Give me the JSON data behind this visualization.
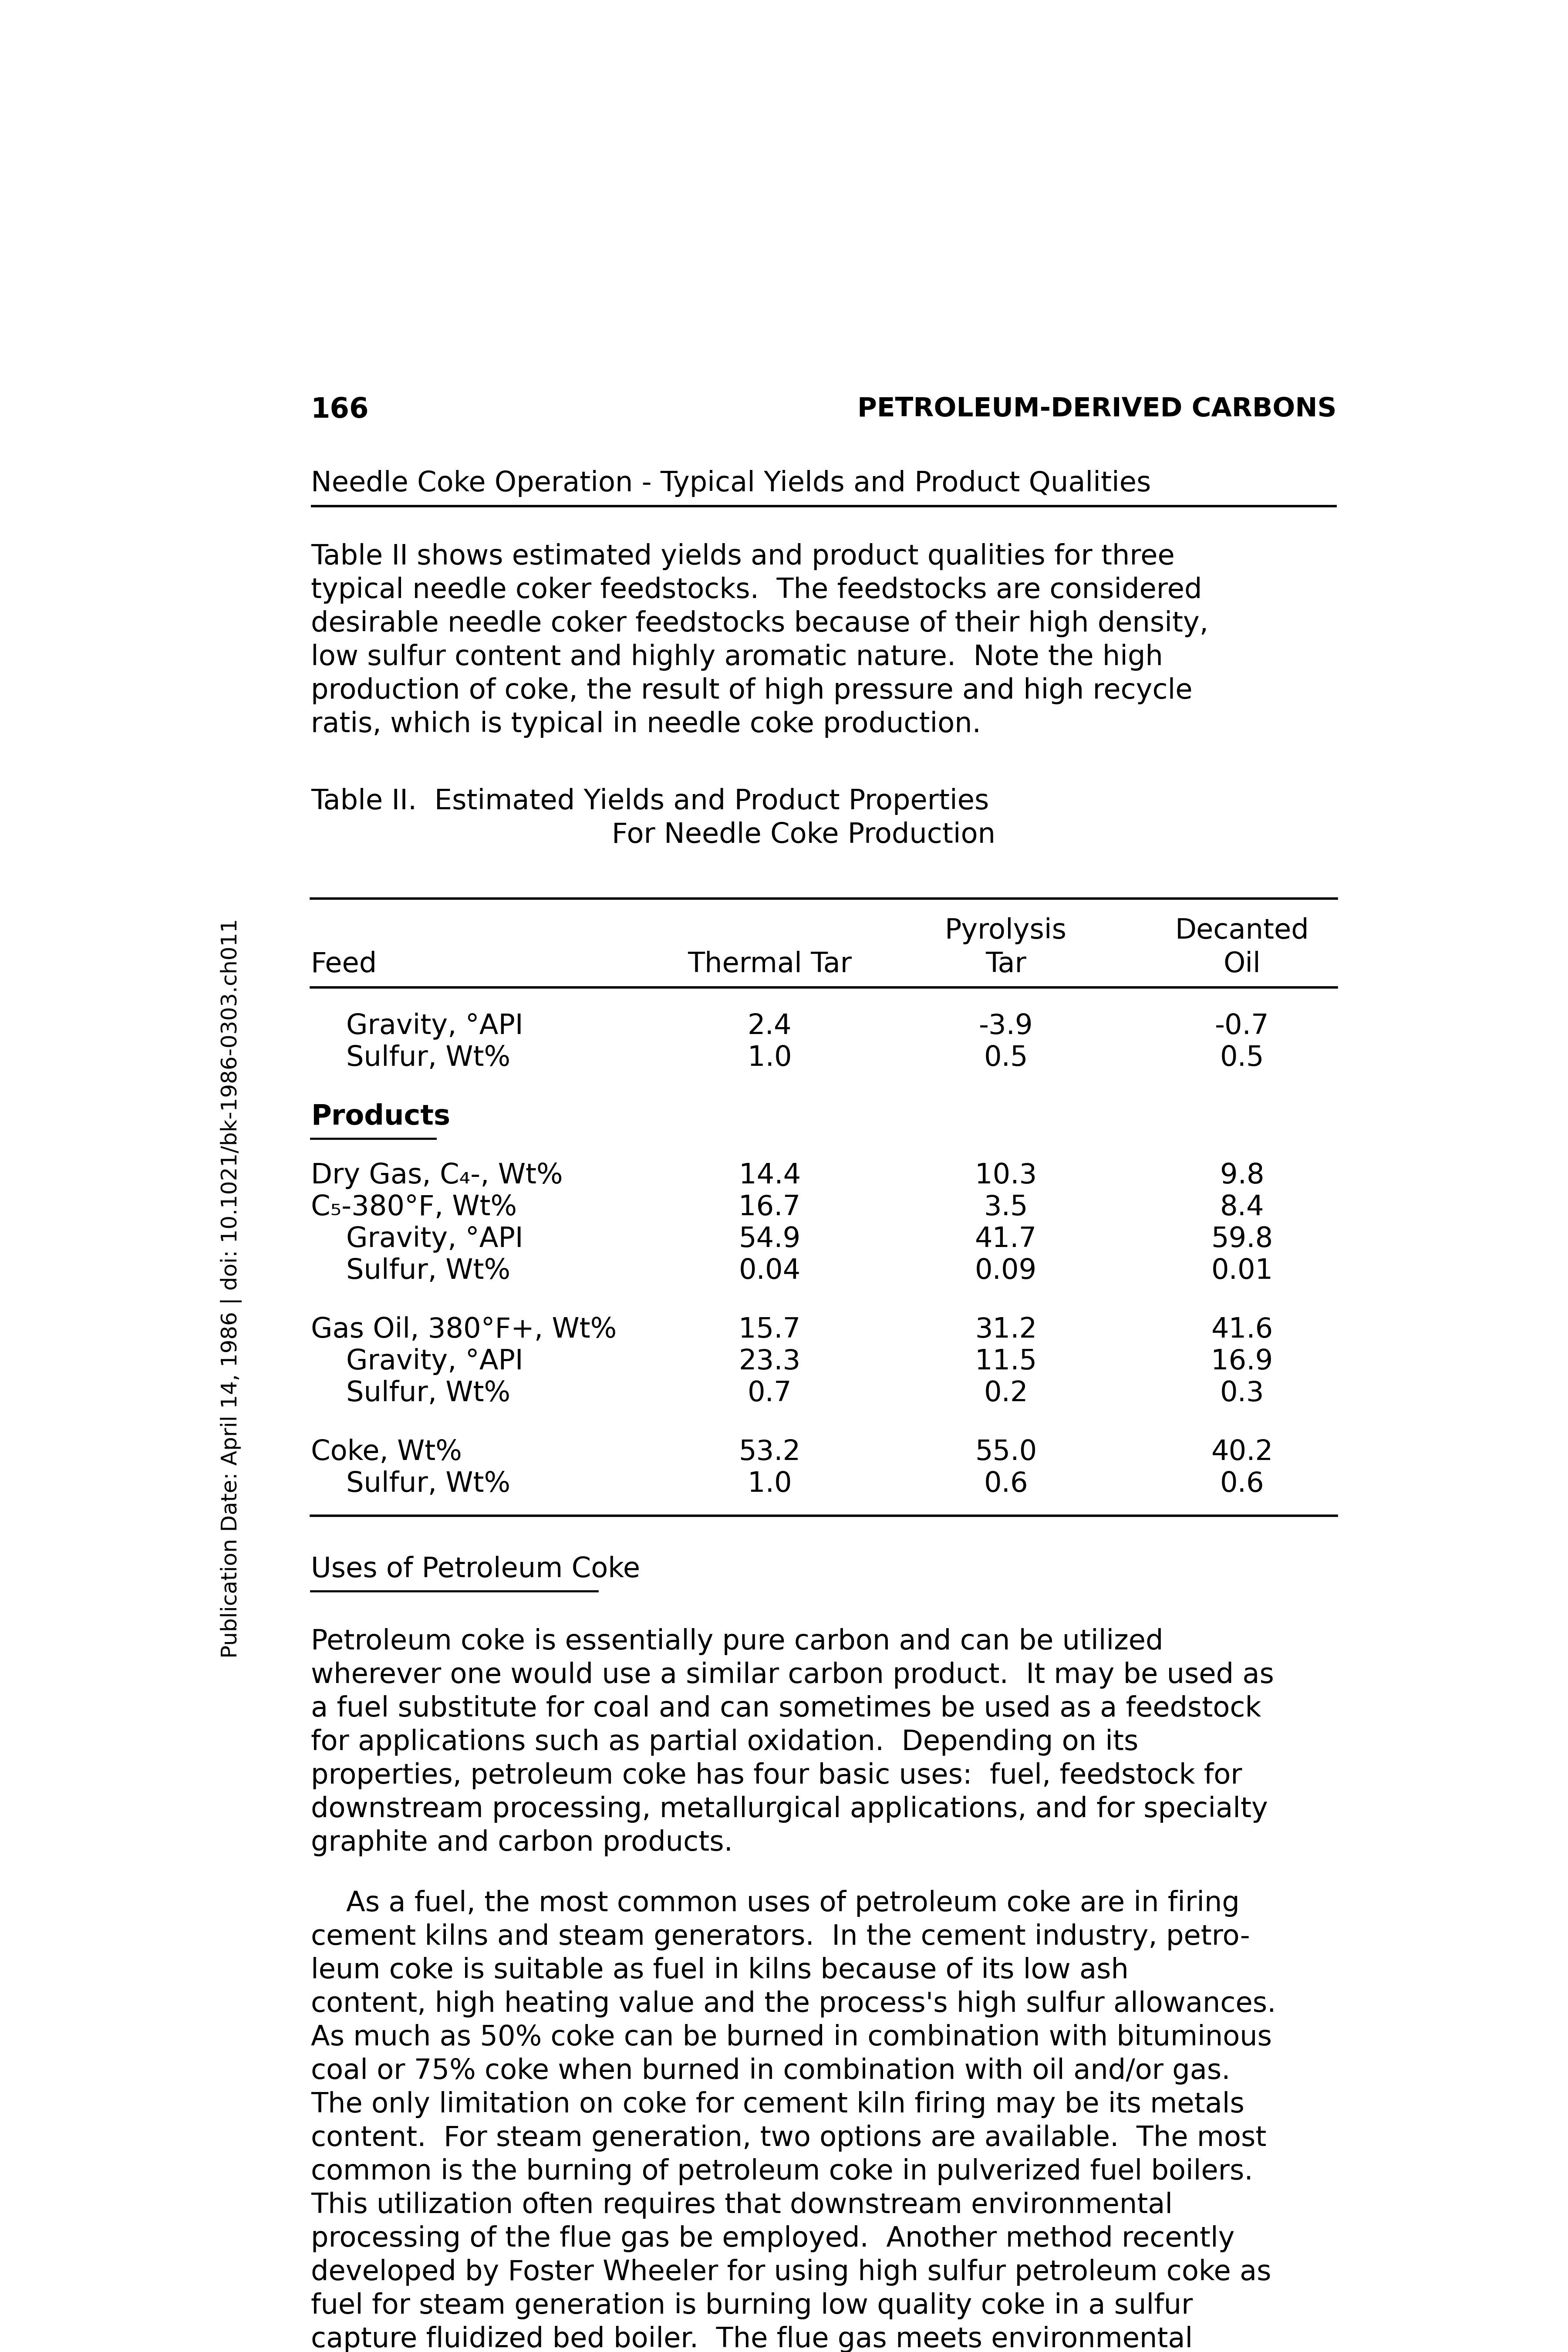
{
  "page_number": "166",
  "header_right": "PETROLEUM-DERIVED CARBONS",
  "section_title": "Needle Coke Operation - Typical Yields and Product Qualities",
  "intro_lines": [
    "Table II shows estimated yields and product qualities for three",
    "typical needle coker feedstocks.  The feedstocks are considered",
    "desirable needle coker feedstocks because of their high density,",
    "low sulfur content and highly aromatic nature.  Note the high",
    "production of coke, the result of high pressure and high recycle",
    "ratis, which is typical in needle coke production."
  ],
  "table_title_line1": "Table II.  Estimated Yields and Product Properties",
  "table_title_line2": "For Needle Coke Production",
  "col_header_row1_c2": "Pyrolysis",
  "col_header_row1_c3": "Decanted",
  "col_header_row2_c0": "Feed",
  "col_header_row2_c1": "Thermal Tar",
  "col_header_row2_c2": "Tar",
  "col_header_row2_c3": "Oil",
  "feed_rows": [
    [
      "    Gravity, °API",
      "2.4",
      "-3.9",
      "-0.7"
    ],
    [
      "    Sulfur, Wt%",
      "1.0",
      "0.5",
      "0.5"
    ]
  ],
  "products_label": "Products",
  "product_rows": [
    [
      "Dry Gas, C₄-, Wt%",
      "14.4",
      "10.3",
      "9.8"
    ],
    [
      "C₅-380°F, Wt%",
      "16.7",
      "3.5",
      "8.4"
    ],
    [
      "    Gravity, °API",
      "54.9",
      "41.7",
      "59.8"
    ],
    [
      "    Sulfur, Wt%",
      "0.04",
      "0.09",
      "0.01"
    ],
    [
      "Gas Oil, 380°F+, Wt%",
      "15.7",
      "31.2",
      "41.6"
    ],
    [
      "    Gravity, °API",
      "23.3",
      "11.5",
      "16.9"
    ],
    [
      "    Sulfur, Wt%",
      "0.7",
      "0.2",
      "0.3"
    ],
    [
      "Coke, Wt%",
      "53.2",
      "55.0",
      "40.2"
    ],
    [
      "    Sulfur, Wt%",
      "1.0",
      "0.6",
      "0.6"
    ]
  ],
  "product_group_spacers": [
    1,
    0,
    0,
    0,
    1,
    0,
    0,
    1,
    0
  ],
  "section2_title": "Uses of Petroleum Coke",
  "body1_lines": [
    "Petroleum coke is essentially pure carbon and can be utilized",
    "wherever one would use a similar carbon product.  It may be used as",
    "a fuel substitute for coal and can sometimes be used as a feedstock",
    "for applications such as partial oxidation.  Depending on its",
    "properties, petroleum coke has four basic uses:  fuel, feedstock for",
    "downstream processing, metallurgical applications, and for specialty",
    "graphite and carbon products."
  ],
  "body2_lines": [
    "    As a fuel, the most common uses of petroleum coke are in firing",
    "cement kilns and steam generators.  In the cement industry, petro-",
    "leum coke is suitable as fuel in kilns because of its low ash",
    "content, high heating value and the process's high sulfur allowances.",
    "As much as 50% coke can be burned in combination with bituminous",
    "coal or 75% coke when burned in combination with oil and/or gas.",
    "The only limitation on coke for cement kiln firing may be its metals",
    "content.  For steam generation, two options are available.  The most",
    "common is the burning of petroleum coke in pulverized fuel boilers.",
    "This utilization often requires that downstream environmental",
    "processing of the flue gas be employed.  Another method recently",
    "developed by Foster Wheeler for using high sulfur petroleum coke as",
    "fuel for steam generation is burning low quality coke in a sulfur",
    "capture fluidized bed boiler.  The flue gas meets environmental"
  ],
  "sidebar_text": "Publication Date: April 14, 1986 | doi: 10.1021/bk-1986-0303.ch011",
  "bg_color": "#ffffff",
  "text_color": "#000000"
}
